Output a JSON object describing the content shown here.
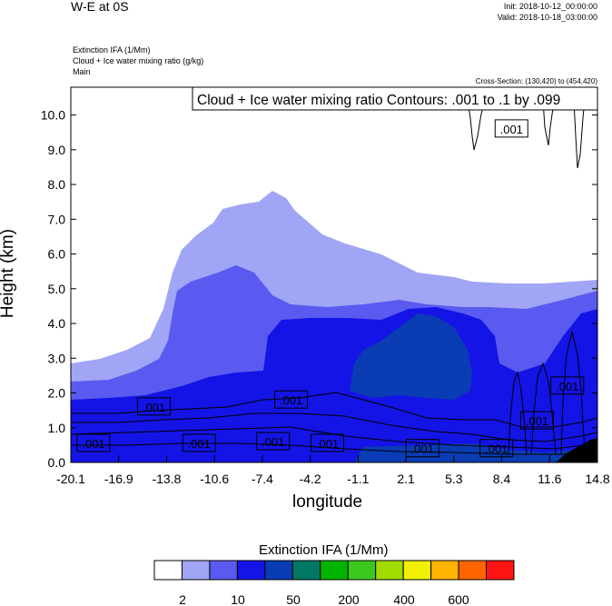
{
  "header": {
    "title": "W-E at 0S",
    "init": "Init: 2018-10-12_00:00:00",
    "valid": "Valid: 2018-10-18_03:00:00",
    "field_line1": "Extinction IFA   (1/Mm)",
    "field_line2": "Cloud + Ice water mixing ratio   (g/kg)",
    "field_line3": "Main",
    "cross_section": "Cross-Section: (130,420) to (454,420)"
  },
  "chart_data": {
    "type": "contour",
    "title": "W-E at 0S",
    "xlabel": "longitude",
    "ylabel": "Height (km)",
    "x_ticks": [
      "-20.1",
      "-16.9",
      "-13.8",
      "-10.6",
      "-7.4",
      "-4.2",
      "-1.1",
      "2.1",
      "5.3",
      "8.4",
      "11.6",
      "14.8"
    ],
    "y_ticks": [
      "0.0",
      "1.0",
      "2.0",
      "3.0",
      "4.0",
      "5.0",
      "6.0",
      "7.0",
      "8.0",
      "9.0",
      "10.0"
    ],
    "xlim": [
      -20.1,
      14.8
    ],
    "ylim": [
      0.0,
      10.8
    ],
    "contour_info": "Cloud + Ice water mixing ratio Contours: .001 to .1 by .099",
    "contour_labels": [
      {
        "text": ".001",
        "x": -14.6,
        "y": 1.6
      },
      {
        "text": ".001",
        "x": -5.5,
        "y": 1.8
      },
      {
        "text": ".001",
        "x": -18.6,
        "y": 0.55
      },
      {
        "text": ".001",
        "x": -11.6,
        "y": 0.55
      },
      {
        "text": ".001",
        "x": -6.7,
        "y": 0.6
      },
      {
        "text": ".001",
        "x": -3.1,
        "y": 0.55
      },
      {
        "text": ".001",
        "x": 3.2,
        "y": 0.4
      },
      {
        "text": ".001",
        "x": 8.1,
        "y": 0.4
      },
      {
        "text": ".001",
        "x": 10.8,
        "y": 1.2
      },
      {
        "text": ".001",
        "x": 12.8,
        "y": 2.2
      },
      {
        "text": ".001",
        "x": 9.1,
        "y": 9.6
      }
    ],
    "colorbar": {
      "title": "Extinction IFA  (1/Mm)",
      "colors": [
        "#ffffff",
        "#a0a5f5",
        "#5a5af0",
        "#1414e6",
        "#0a3cb4",
        "#007864",
        "#00b400",
        "#3cc81e",
        "#a0dc00",
        "#f0f000",
        "#ffb400",
        "#ff6400",
        "#ff1414"
      ],
      "labels": [
        "2",
        "10",
        "50",
        "200",
        "400",
        "600"
      ]
    },
    "fill_colors": {
      "light": "#a0a5f5",
      "medium": "#5a5af0",
      "blue": "#1414e6",
      "dark": "#0a3cb4",
      "terrain": "#000000"
    }
  }
}
